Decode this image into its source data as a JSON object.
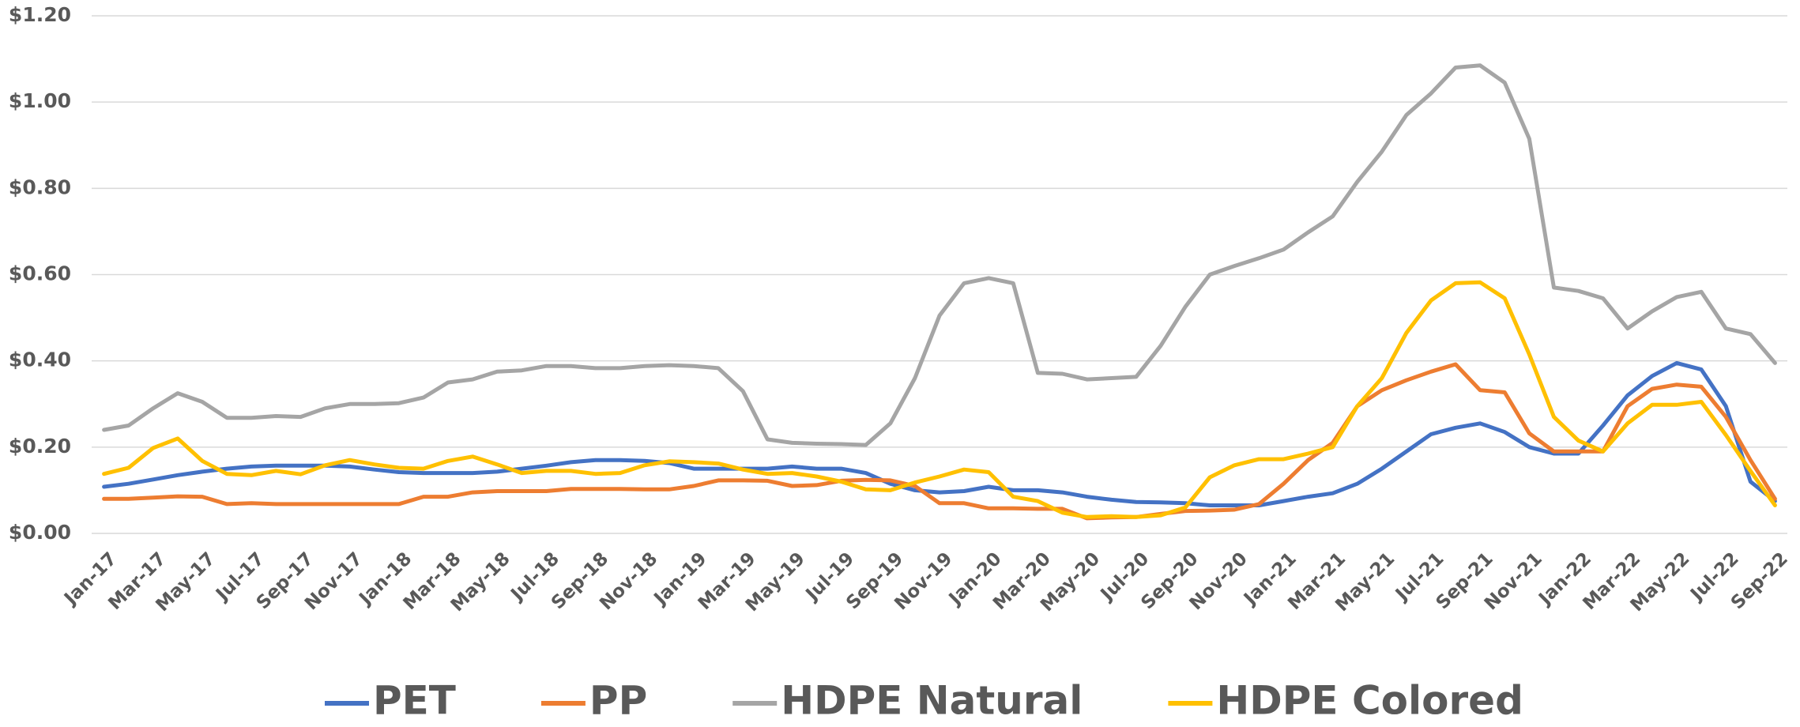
{
  "chart_data": {
    "type": "line",
    "categories": [
      "Jan-17",
      null,
      "Mar-17",
      null,
      "May-17",
      null,
      "Jul-17",
      null,
      "Sep-17",
      null,
      "Nov-17",
      null,
      "Jan-18",
      null,
      "Mar-18",
      null,
      "May-18",
      null,
      "Jul-18",
      null,
      "Sep-18",
      null,
      "Nov-18",
      null,
      "Jan-19",
      null,
      "Mar-19",
      null,
      "May-19",
      null,
      "Jul-19",
      null,
      "Sep-19",
      null,
      "Nov-19",
      null,
      "Jan-20",
      null,
      "Mar-20",
      null,
      "May-20",
      null,
      "Jul-20",
      null,
      "Sep-20",
      null,
      "Nov-20",
      null,
      "Jan-21",
      null,
      "Mar-21",
      null,
      "May-21",
      null,
      "Jul-21",
      null,
      "Sep-21",
      null,
      "Nov-21",
      null,
      "Jan-22",
      null,
      "Mar-22",
      null,
      "May-22",
      null,
      "Jul-22",
      null,
      "Sep-22"
    ],
    "series": [
      {
        "name": "PET",
        "color": "#4472c4",
        "values": [
          0.108,
          0.115,
          0.125,
          0.135,
          0.143,
          0.15,
          0.155,
          0.157,
          0.157,
          0.157,
          0.155,
          0.148,
          0.142,
          0.14,
          0.14,
          0.14,
          0.143,
          0.15,
          0.157,
          0.165,
          0.17,
          0.17,
          0.168,
          0.163,
          0.15,
          0.15,
          0.15,
          0.15,
          0.155,
          0.15,
          0.15,
          0.14,
          0.115,
          0.1,
          0.095,
          0.098,
          0.108,
          0.1,
          0.1,
          0.095,
          0.085,
          0.078,
          0.073,
          0.072,
          0.07,
          0.065,
          0.065,
          0.065,
          0.075,
          0.085,
          0.093,
          0.115,
          0.15,
          0.19,
          0.23,
          0.245,
          0.255,
          0.235,
          0.2,
          0.185,
          0.185,
          0.25,
          0.32,
          0.365,
          0.395,
          0.38,
          0.295,
          0.12,
          0.075
        ]
      },
      {
        "name": "PP",
        "color": "#ed7d31",
        "values": [
          0.08,
          0.08,
          0.083,
          0.086,
          0.085,
          0.068,
          0.07,
          0.068,
          0.068,
          0.068,
          0.068,
          0.068,
          0.068,
          0.085,
          0.085,
          0.095,
          0.098,
          0.098,
          0.098,
          0.103,
          0.103,
          0.103,
          0.102,
          0.102,
          0.11,
          0.123,
          0.123,
          0.122,
          0.11,
          0.112,
          0.122,
          0.124,
          0.123,
          0.11,
          0.07,
          0.07,
          0.058,
          0.058,
          0.057,
          0.057,
          0.035,
          0.037,
          0.038,
          0.045,
          0.052,
          0.053,
          0.055,
          0.068,
          0.115,
          0.17,
          0.21,
          0.295,
          0.332,
          0.355,
          0.375,
          0.392,
          0.332,
          0.327,
          0.232,
          0.19,
          0.19,
          0.19,
          0.295,
          0.335,
          0.345,
          0.34,
          0.27,
          0.17,
          0.08
        ]
      },
      {
        "name": "HDPE Natural",
        "color": "#a5a5a5",
        "values": [
          0.24,
          0.25,
          0.29,
          0.325,
          0.305,
          0.268,
          0.268,
          0.272,
          0.27,
          0.29,
          0.3,
          0.3,
          0.302,
          0.315,
          0.35,
          0.357,
          0.375,
          0.378,
          0.388,
          0.388,
          0.383,
          0.383,
          0.388,
          0.39,
          0.388,
          0.383,
          0.33,
          0.218,
          0.21,
          0.208,
          0.207,
          0.205,
          0.255,
          0.36,
          0.505,
          0.58,
          0.592,
          0.58,
          0.372,
          0.37,
          0.357,
          0.36,
          0.363,
          0.435,
          0.525,
          0.6,
          0.62,
          0.638,
          0.658,
          0.698,
          0.735,
          0.815,
          0.885,
          0.97,
          1.02,
          1.08,
          1.085,
          1.045,
          0.915,
          0.57,
          0.562,
          0.545,
          0.475,
          0.515,
          0.548,
          0.56,
          0.475,
          0.462,
          0.395
        ]
      },
      {
        "name": "HDPE Colored",
        "color": "#ffc000",
        "values": [
          0.138,
          0.152,
          0.198,
          0.22,
          0.168,
          0.138,
          0.135,
          0.145,
          0.137,
          0.158,
          0.17,
          0.16,
          0.152,
          0.15,
          0.168,
          0.178,
          0.16,
          0.14,
          0.145,
          0.145,
          0.138,
          0.14,
          0.158,
          0.167,
          0.165,
          0.162,
          0.148,
          0.138,
          0.14,
          0.132,
          0.12,
          0.102,
          0.1,
          0.118,
          0.132,
          0.148,
          0.142,
          0.085,
          0.075,
          0.048,
          0.038,
          0.04,
          0.038,
          0.042,
          0.06,
          0.13,
          0.158,
          0.172,
          0.172,
          0.185,
          0.2,
          0.295,
          0.36,
          0.465,
          0.54,
          0.58,
          0.582,
          0.545,
          0.415,
          0.27,
          0.215,
          0.19,
          0.255,
          0.298,
          0.298,
          0.305,
          0.228,
          0.145,
          0.065
        ]
      }
    ],
    "ylim": [
      0,
      1.2
    ],
    "yticks": [
      {
        "value": 0,
        "label": "$0.00"
      },
      {
        "value": 0.2,
        "label": "$0.20"
      },
      {
        "value": 0.4,
        "label": "$0.40"
      },
      {
        "value": 0.6,
        "label": "$0.60"
      },
      {
        "value": 0.8,
        "label": "$0.80"
      },
      {
        "value": 1.0,
        "label": "$1.00"
      },
      {
        "value": 1.2,
        "label": "$1.20"
      }
    ],
    "grid": true,
    "legend": "bottom"
  }
}
